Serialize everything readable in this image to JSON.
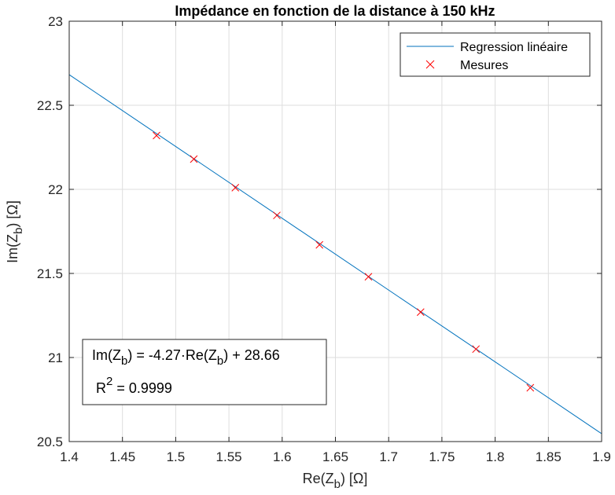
{
  "chart_data": {
    "type": "scatter",
    "title": "Impédance en fonction de la distance à 150 kHz",
    "xlabel": {
      "base": "Re(Z",
      "sub": "b",
      "tail": ") [Ω]"
    },
    "ylabel": {
      "base": "Im(Z",
      "sub": "b",
      "tail": ") [Ω]"
    },
    "xlim": [
      1.4,
      1.9
    ],
    "ylim": [
      20.5,
      23
    ],
    "xticks": [
      1.4,
      1.45,
      1.5,
      1.55,
      1.6,
      1.65,
      1.7,
      1.75,
      1.8,
      1.85,
      1.9
    ],
    "xtick_labels": [
      "1.4",
      "1.45",
      "1.5",
      "1.55",
      "1.6",
      "1.65",
      "1.7",
      "1.75",
      "1.8",
      "1.85",
      "1.9"
    ],
    "yticks": [
      20.5,
      21,
      21.5,
      22,
      22.5,
      23
    ],
    "ytick_labels": [
      "20.5",
      "21",
      "21.5",
      "22",
      "22.5",
      "23"
    ],
    "grid": true,
    "legend_position": "top-right",
    "series": [
      {
        "name": "Regression linéaire",
        "kind": "line",
        "color": "#0072BD",
        "slope": -4.27,
        "intercept": 28.66
      },
      {
        "name": "Mesures",
        "kind": "marker-x",
        "color": "#FF0000",
        "x": [
          1.482,
          1.517,
          1.556,
          1.595,
          1.635,
          1.681,
          1.73,
          1.782,
          1.833
        ],
        "y": [
          22.32,
          22.18,
          22.01,
          21.845,
          21.67,
          21.48,
          21.27,
          21.05,
          20.82
        ]
      }
    ],
    "annotation": {
      "position": "bottom-left",
      "line1": {
        "a": "Im(Z",
        "b": "b",
        "c": ") = -4.27·Re(Z",
        "d": "b",
        "e": ") + 28.66"
      },
      "line2": {
        "a": "R",
        "sup": "2",
        "b": " = 0.9999"
      }
    }
  }
}
